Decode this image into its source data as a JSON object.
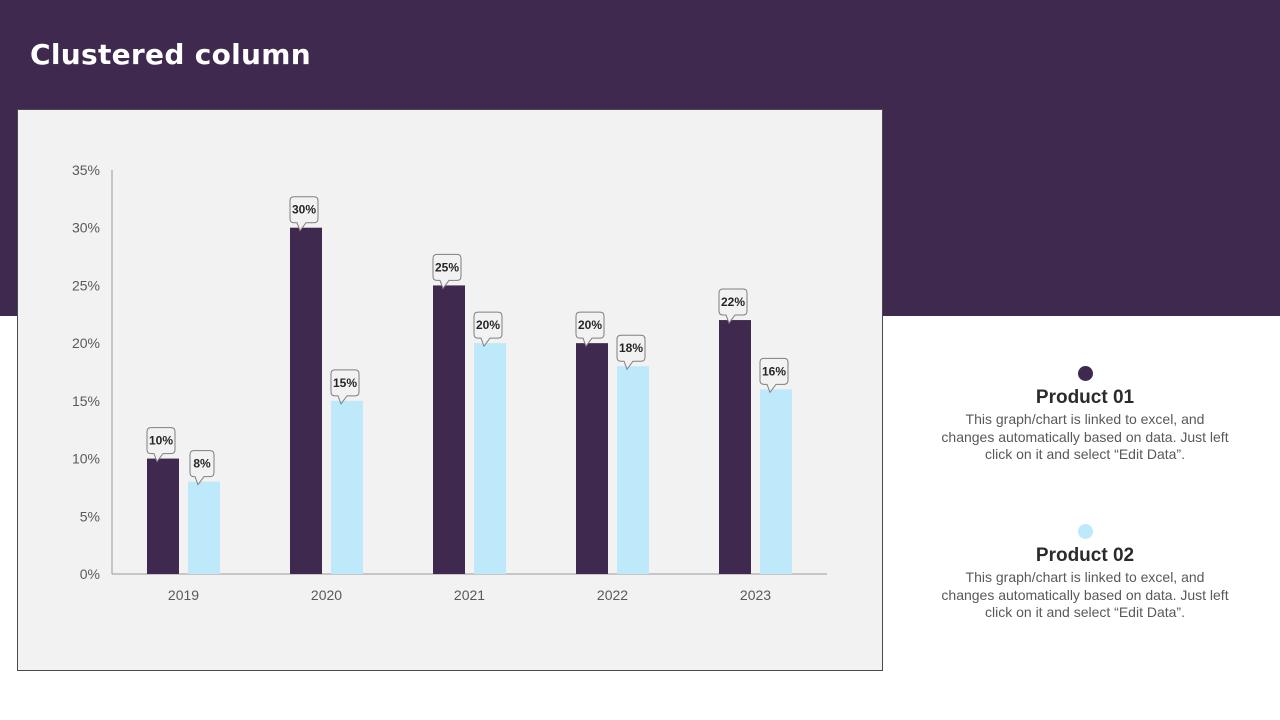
{
  "page": {
    "title": "Clustered column"
  },
  "colors": {
    "header_bg": "#40294E",
    "series_1": "#40294E",
    "series_2": "#BDE9FB"
  },
  "legend": [
    {
      "name": "Product 01",
      "description": "This graph/chart is linked to excel, and changes automatically based on data. Just left click on it and select “Edit Data”."
    },
    {
      "name": "Product 02",
      "description": "This graph/chart is linked to excel, and changes automatically based on data. Just left click on it and select “Edit Data”."
    }
  ],
  "chart_data": {
    "type": "bar",
    "title": "",
    "xlabel": "",
    "ylabel": "",
    "categories": [
      "2019",
      "2020",
      "2021",
      "2022",
      "2023"
    ],
    "series": [
      {
        "name": "Product 01",
        "values": [
          10,
          30,
          25,
          20,
          22
        ],
        "labels": [
          "10%",
          "30%",
          "25%",
          "20%",
          "22%"
        ]
      },
      {
        "name": "Product 02",
        "values": [
          8,
          15,
          20,
          18,
          16
        ],
        "labels": [
          "8%",
          "15%",
          "20%",
          "18%",
          "16%"
        ]
      }
    ],
    "ylim": [
      0,
      35
    ],
    "yticks": [
      0,
      5,
      10,
      15,
      20,
      25,
      30,
      35
    ],
    "ytick_labels": [
      "0%",
      "5%",
      "10%",
      "15%",
      "20%",
      "25%",
      "30%",
      "35%"
    ],
    "grid": false,
    "data_labels": "callout"
  }
}
